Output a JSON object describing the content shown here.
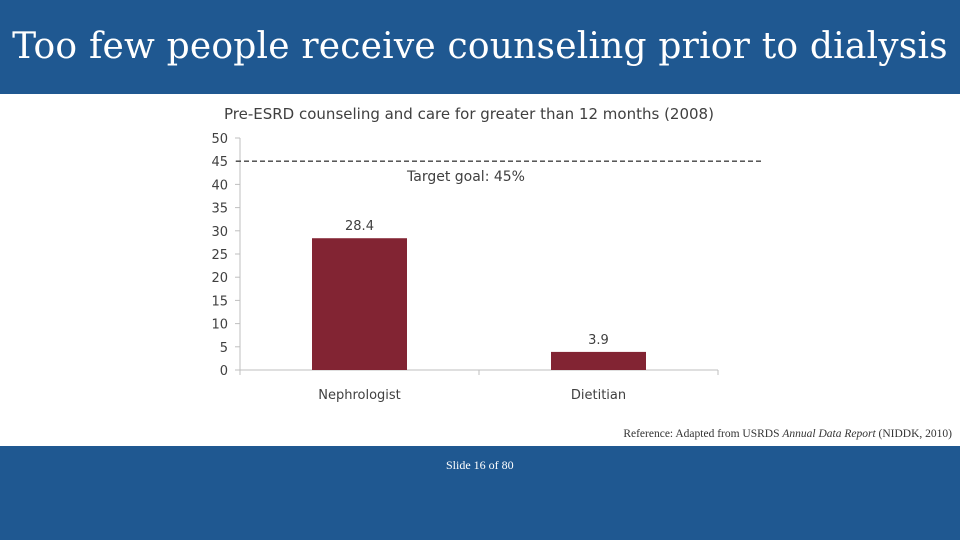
{
  "slide": {
    "title": "Too few people receive counseling prior to dialysis",
    "slide_number_text": "Slide 16 of 80",
    "reference_prefix": "Reference: Adapted from USRDS ",
    "reference_italic": "Annual Data Report",
    "reference_suffix": " (NIDDK, 2010)"
  },
  "colors": {
    "band": "#1f5891",
    "bar": "#822433",
    "text": "#404040"
  },
  "chart_data": {
    "type": "bar",
    "title": "Pre-ESRD counseling and care for greater than 12 months (2008)",
    "categories": [
      "Nephrologist",
      "Dietitian"
    ],
    "values": [
      28.4,
      3.9
    ],
    "value_labels": [
      "28.4",
      "3.9"
    ],
    "ylim": [
      0,
      50
    ],
    "yticks": [
      0,
      5,
      10,
      15,
      20,
      25,
      30,
      35,
      40,
      45,
      50
    ],
    "xlabel": "",
    "ylabel": "",
    "grid": false,
    "reference_line": {
      "value": 45,
      "label": "Target goal:  45%",
      "style": "dashed"
    }
  }
}
